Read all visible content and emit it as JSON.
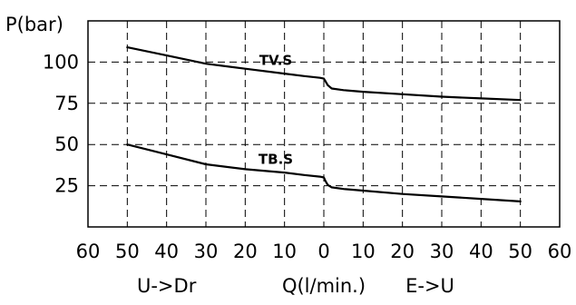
{
  "chart_data": {
    "type": "line",
    "title": "",
    "ylabel": "P(bar)",
    "xlabel": "Q(l/min.)",
    "x_direction_labels": {
      "left": "U->Dr",
      "right": "E->U"
    },
    "x_ticks": [
      {
        "pos": -60,
        "label": "60"
      },
      {
        "pos": -50,
        "label": "50"
      },
      {
        "pos": -40,
        "label": "40"
      },
      {
        "pos": -30,
        "label": "30"
      },
      {
        "pos": -20,
        "label": "20"
      },
      {
        "pos": -10,
        "label": "10"
      },
      {
        "pos": 0,
        "label": "0"
      },
      {
        "pos": 10,
        "label": "10"
      },
      {
        "pos": 20,
        "label": "20"
      },
      {
        "pos": 30,
        "label": "30"
      },
      {
        "pos": 40,
        "label": "40"
      },
      {
        "pos": 50,
        "label": "50"
      },
      {
        "pos": 60,
        "label": "60"
      }
    ],
    "y_ticks": [
      25,
      50,
      75,
      100
    ],
    "xlim": [
      -60,
      60
    ],
    "ylim": [
      0,
      125
    ],
    "grid": true,
    "legend": "none",
    "series": [
      {
        "name": "TV.S",
        "x": [
          -50,
          -40,
          -30,
          -20,
          -10,
          -5,
          -1,
          0,
          0.4,
          1,
          2,
          5,
          10,
          20,
          30,
          40,
          50
        ],
        "y": [
          109,
          104,
          99,
          96,
          93,
          91.5,
          90.5,
          90,
          88.5,
          86,
          84,
          83,
          82,
          80.5,
          79,
          78,
          77
        ]
      },
      {
        "name": "TB.S",
        "x": [
          -50,
          -40,
          -30,
          -20,
          -10,
          -5,
          -1,
          0,
          0.4,
          1,
          2,
          5,
          10,
          20,
          30,
          40,
          50
        ],
        "y": [
          50,
          44,
          38,
          35,
          33,
          31.5,
          30.5,
          30,
          28,
          25.5,
          24,
          23,
          22,
          20,
          18.5,
          17,
          15.5
        ]
      }
    ]
  }
}
